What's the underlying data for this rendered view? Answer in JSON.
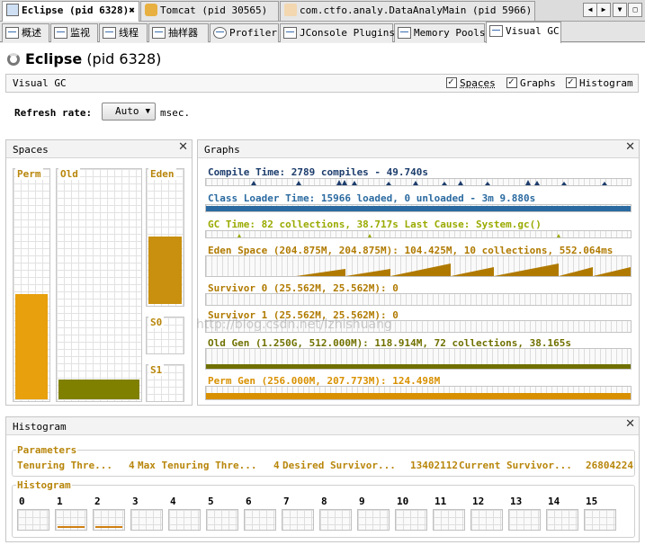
{
  "doc_tabs": [
    {
      "label": "Eclipse (pid 6328)",
      "active": true
    },
    {
      "label": "Tomcat (pid 30565)",
      "active": false
    },
    {
      "label": "com.ctfo.analy.DataAnalyMain (pid 5966)",
      "active": false
    }
  ],
  "sub_tabs": [
    {
      "label": "概述"
    },
    {
      "label": "监视"
    },
    {
      "label": "线程"
    },
    {
      "label": "抽样器"
    },
    {
      "label": "Profiler"
    },
    {
      "label": "JConsole Plugins"
    },
    {
      "label": "Memory Pools"
    },
    {
      "label": "Visual GC",
      "active": true
    }
  ],
  "app": {
    "name": "Eclipse",
    "pid": "(pid 6328)"
  },
  "visual_gc": {
    "label": "Visual GC",
    "checkboxes": [
      {
        "label": "Spaces",
        "checked": true
      },
      {
        "label": "Graphs",
        "checked": true
      },
      {
        "label": "Histogram",
        "checked": true
      }
    ]
  },
  "refresh": {
    "label": "Refresh rate:",
    "value": "Auto",
    "unit": "msec."
  },
  "spaces": {
    "title": "Spaces",
    "perm": {
      "label": "Perm",
      "fill_fraction": 0.46,
      "color": "#e8a00c"
    },
    "old": {
      "label": "Old",
      "fill_fraction": 0.085,
      "color": "#808000"
    },
    "eden": {
      "label": "Eden",
      "fill_fraction": 0.51,
      "color": "#c8900e"
    },
    "s0": {
      "label": "S0"
    },
    "s1": {
      "label": "S1"
    }
  },
  "graphs": {
    "title": "Graphs",
    "items": [
      {
        "text": "Compile Time: 2789 compiles - 49.740s",
        "color": "#1c3c6c"
      },
      {
        "text": "Class Loader Time: 15966 loaded, 0 unloaded - 3m 9.880s",
        "color": "#2a6aa0"
      },
      {
        "text": "GC Time: 82 collections, 38.717s  Last Cause: System.gc()",
        "color": "#9aaa00"
      },
      {
        "text": "Eden Space (204.875M, 204.875M): 104.425M, 10 collections, 552.064ms",
        "color": "#b07a00"
      },
      {
        "text": "Survivor 0 (25.562M, 25.562M): 0",
        "color": "#b07a00"
      },
      {
        "text": "Survivor 1 (25.562M, 25.562M): 0",
        "color": "#b07a00"
      },
      {
        "text": "Old Gen (1.250G, 512.000M): 118.914M, 72 collections, 38.165s",
        "color": "#707000"
      },
      {
        "text": "Perm Gen (256.000M, 207.773M): 124.498M",
        "color": "#d89000"
      }
    ]
  },
  "histogram": {
    "title": "Histogram",
    "parameters_label": "Parameters",
    "params": [
      {
        "label": "Tenuring Thre...",
        "value": "4"
      },
      {
        "label": "Max Tenuring Thre...",
        "value": "4"
      },
      {
        "label": "Desired Survivor...",
        "value": "13402112"
      },
      {
        "label": "Current Survivor...",
        "value": "26804224"
      }
    ],
    "histogram_label": "Histogram",
    "bins": [
      "0",
      "1",
      "2",
      "3",
      "4",
      "5",
      "6",
      "7",
      "8",
      "9",
      "10",
      "11",
      "12",
      "13",
      "14",
      "15"
    ]
  },
  "watermark": "http://blog.csdn.net/lzhishuang"
}
